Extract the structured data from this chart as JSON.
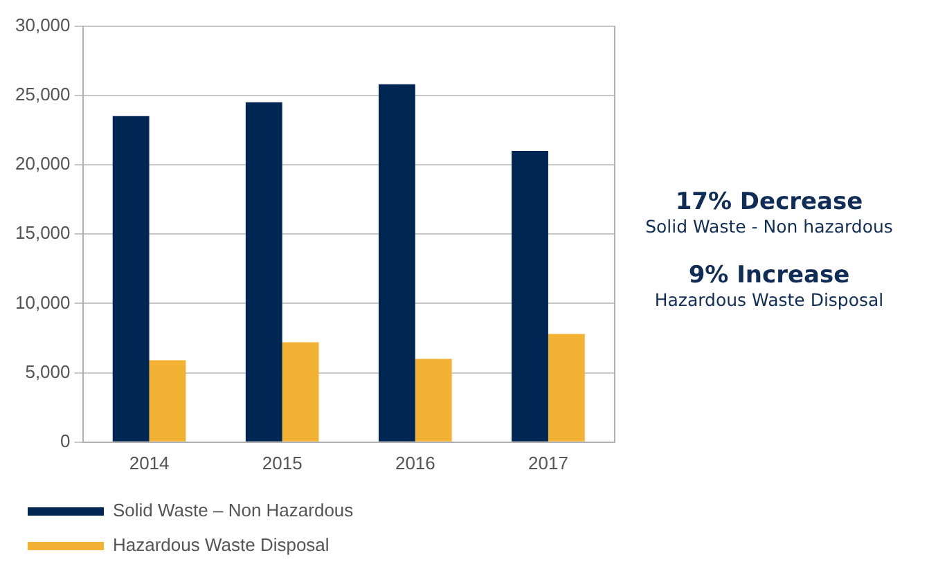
{
  "chart_data": {
    "type": "bar",
    "categories": [
      "2014",
      "2015",
      "2016",
      "2017"
    ],
    "series": [
      {
        "name": "Solid Waste – Non Hazardous",
        "color": "#002654",
        "values": [
          23500,
          24500,
          25800,
          21000
        ]
      },
      {
        "name": "Hazardous Waste Disposal",
        "color": "#f3b234",
        "values": [
          5900,
          7200,
          6000,
          7800
        ]
      }
    ],
    "ylim": [
      0,
      30000
    ],
    "yticks": [
      0,
      {
        "value": 5000,
        "label": "5,000"
      },
      {
        "value": 10000,
        "label": "10,000"
      },
      {
        "value": 15000,
        "label": "15,000"
      },
      {
        "value": 20000,
        "label": "20,000"
      },
      {
        "value": 25000,
        "label": "25,000"
      },
      {
        "value": 30000,
        "label": "30,000"
      }
    ],
    "grid": "y",
    "legend": "bottom",
    "annotations": [
      "17% Decrease",
      "Solid Waste - Non hazardous",
      "9% Increase",
      "Hazardous Waste Disposal"
    ]
  }
}
